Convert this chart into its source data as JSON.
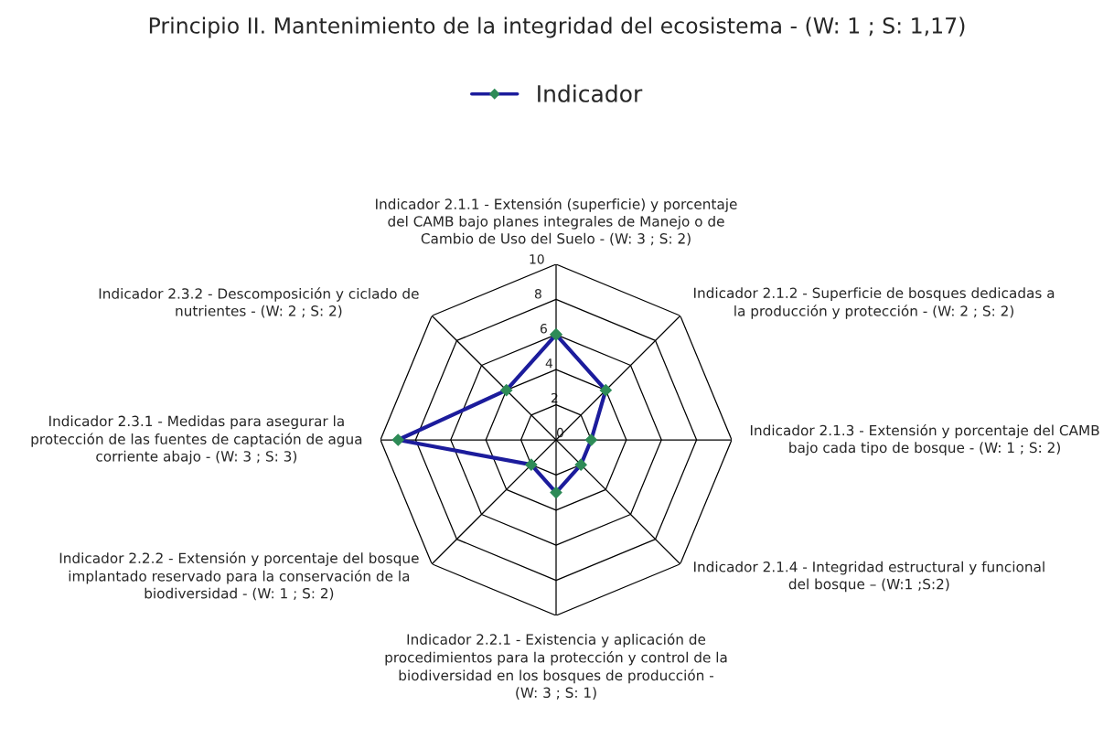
{
  "chart_data": {
    "type": "radar",
    "title": "Principio II. Mantenimiento de la integridad del ecosistema - (W: 1 ; S: 1,17)",
    "categories": [
      "Indicador 2.1.1 - Extensión (superficie) y porcentaje\ndel CAMB bajo planes integrales de Manejo o de\nCambio de Uso del Suelo - (W: 3 ; S: 2)",
      "Indicador 2.1.2 - Superficie de bosques dedicadas a\nla producción y protección - (W: 2 ; S: 2)",
      "Indicador 2.1.3 - Extensión y porcentaje del CAMB\nbajo cada tipo de bosque - (W: 1 ; S: 2)",
      "Indicador 2.1.4 - Integridad estructural y funcional\ndel bosque – (W:1 ;S:2)",
      "Indicador 2.2.1 - Existencia y aplicación de\nprocedimientos para la protección y control de la\nbiodiversidad en los bosques de producción -\n(W: 3 ; S: 1)",
      "Indicador 2.2.2 - Extensión y porcentaje del bosque\nimplantado reservado para la conservación de la\nbiodiversidad - (W: 1 ; S: 2)",
      "Indicador 2.3.1 - Medidas para asegurar la\nprotección de las fuentes de captación de agua\ncorriente abajo - (W: 3 ; S: 3)",
      "Indicador 2.3.2 - Descomposición y ciclado de\nnutrientes - (W: 2 ; S: 2)"
    ],
    "series": [
      {
        "name": "Indicador",
        "color": "#1c1c9c",
        "values": [
          6,
          4,
          2,
          2,
          3,
          2,
          9,
          4
        ]
      }
    ],
    "ylim": [
      0,
      10
    ],
    "yticks": [
      0,
      2,
      4,
      6,
      8,
      10
    ],
    "grid": true,
    "legend": "top",
    "marker": "diamond",
    "line_style": "solid"
  }
}
